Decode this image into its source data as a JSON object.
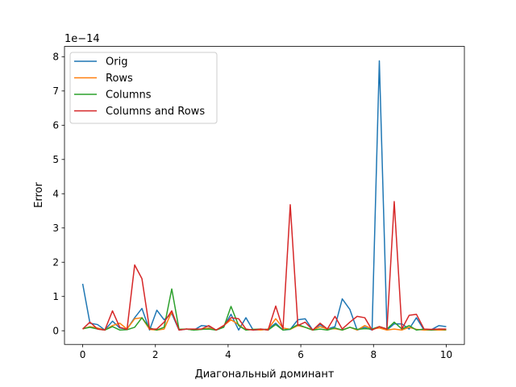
{
  "chart_data": {
    "type": "line",
    "title": "",
    "xlabel": "Диагональный доминант",
    "ylabel": "Error",
    "offset_label": "1e−14",
    "xlim": [
      -0.5,
      10.5
    ],
    "ylim": [
      -0.4,
      8.3
    ],
    "x_ticks": [
      0,
      2,
      4,
      6,
      8,
      10
    ],
    "x_tick_labels": [
      "0",
      "2",
      "4",
      "6",
      "8",
      "10"
    ],
    "y_ticks": [
      0,
      1,
      2,
      3,
      4,
      5,
      6,
      7,
      8
    ],
    "y_tick_labels": [
      "0",
      "1",
      "2",
      "3",
      "4",
      "5",
      "6",
      "7",
      "8"
    ],
    "grid": false,
    "legend_position": "top-left",
    "x": [
      0,
      0.2,
      0.41,
      0.61,
      0.82,
      1.02,
      1.22,
      1.43,
      1.63,
      1.84,
      2.04,
      2.24,
      2.45,
      2.65,
      2.86,
      3.06,
      3.27,
      3.47,
      3.67,
      3.88,
      4.08,
      4.29,
      4.49,
      4.69,
      4.9,
      5.1,
      5.31,
      5.51,
      5.71,
      5.92,
      6.12,
      6.33,
      6.53,
      6.73,
      6.94,
      7.14,
      7.35,
      7.55,
      7.76,
      7.96,
      8.16,
      8.37,
      8.57,
      8.78,
      8.98,
      9.18,
      9.39,
      9.59,
      9.8,
      10.0
    ],
    "series": [
      {
        "name": "Orig",
        "color": "#1f77b4",
        "values": [
          1.37,
          0.22,
          0.18,
          0.02,
          0.28,
          0.08,
          0.05,
          0.38,
          0.65,
          0.02,
          0.6,
          0.32,
          0.5,
          0.02,
          0.05,
          0.02,
          0.15,
          0.13,
          0.02,
          0.12,
          0.48,
          0.02,
          0.38,
          0.02,
          0.03,
          0.05,
          0.22,
          0.02,
          0.04,
          0.32,
          0.35,
          0.02,
          0.18,
          0.05,
          0.12,
          0.93,
          0.62,
          0.02,
          0.1,
          0.02,
          7.88,
          0.02,
          0.2,
          0.2,
          0.05,
          0.38,
          0.02,
          0.03,
          0.15,
          0.12
        ]
      },
      {
        "name": "Rows",
        "color": "#ff7f0e",
        "values": [
          0.05,
          0.12,
          0.08,
          0.02,
          0.15,
          0.22,
          0.05,
          0.35,
          0.38,
          0.04,
          0.02,
          0.05,
          0.55,
          0.04,
          0.05,
          0.02,
          0.04,
          0.08,
          0.02,
          0.15,
          0.32,
          0.18,
          0.02,
          0.04,
          0.02,
          0.05,
          0.35,
          0.08,
          0.04,
          0.15,
          0.1,
          0.02,
          0.12,
          0.05,
          0.06,
          0.02,
          0.1,
          0.02,
          0.15,
          0.05,
          0.08,
          0.02,
          0.05,
          0.02,
          0.1,
          0.04,
          0.02,
          0.02,
          0.02,
          0.02
        ]
      },
      {
        "name": "Columns",
        "color": "#2ca02c",
        "values": [
          0.06,
          0.1,
          0.05,
          0.02,
          0.12,
          0.02,
          0.03,
          0.1,
          0.38,
          0.08,
          0.02,
          0.1,
          1.22,
          0.04,
          0.05,
          0.02,
          0.04,
          0.05,
          0.02,
          0.1,
          0.71,
          0.15,
          0.02,
          0.04,
          0.05,
          0.02,
          0.18,
          0.02,
          0.05,
          0.18,
          0.1,
          0.02,
          0.05,
          0.02,
          0.08,
          0.02,
          0.1,
          0.04,
          0.06,
          0.05,
          0.12,
          0.05,
          0.25,
          0.05,
          0.15,
          0.02,
          0.05,
          0.02,
          0.05,
          0.03
        ]
      },
      {
        "name": "Columns and Rows",
        "color": "#d62728",
        "values": [
          0.05,
          0.25,
          0.05,
          0.02,
          0.58,
          0.1,
          0.04,
          1.92,
          1.52,
          0.05,
          0.05,
          0.25,
          0.58,
          0.02,
          0.05,
          0.05,
          0.05,
          0.15,
          0.02,
          0.15,
          0.38,
          0.35,
          0.05,
          0.02,
          0.05,
          0.02,
          0.72,
          0.05,
          3.68,
          0.15,
          0.25,
          0.02,
          0.22,
          0.05,
          0.42,
          0.05,
          0.25,
          0.42,
          0.38,
          0.02,
          0.12,
          0.05,
          3.77,
          0.05,
          0.45,
          0.48,
          0.05,
          0.04,
          0.05,
          0.05
        ]
      }
    ]
  }
}
